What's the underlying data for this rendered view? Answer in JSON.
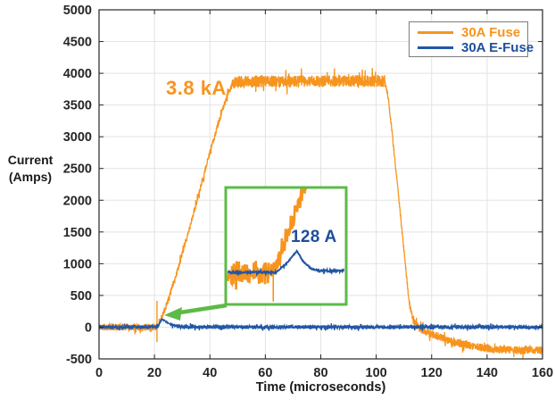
{
  "chart_data": {
    "type": "line",
    "title": "",
    "xlabel": "Time (microseconds)",
    "ylabel_lines": [
      "Current",
      "(Amps)"
    ],
    "xlim": [
      0,
      160
    ],
    "ylim": [
      -500,
      5000
    ],
    "x_ticks": [
      0,
      20,
      40,
      60,
      80,
      100,
      120,
      140,
      160
    ],
    "y_ticks": [
      -500,
      0,
      500,
      1000,
      1500,
      2000,
      2500,
      3000,
      3500,
      4000,
      4500,
      5000
    ],
    "grid": true,
    "colors": {
      "fuse_orange": "#F7941E",
      "efuse_blue_line": "#2257A5",
      "efuse_blue_text": "#1F4E9B",
      "inset_green": "#5CBB46",
      "grid_gray": "#e3e3e3",
      "axis_dark": "#262626",
      "legend_border": "#7d7d7d"
    },
    "legend": {
      "position": "top-right",
      "entries": [
        {
          "label": "30A Fuse",
          "line_color": "#F7941E",
          "text_color": "#F7941E"
        },
        {
          "label": "30A E-Fuse",
          "line_color": "#2257A5",
          "text_color": "#1F4E9B"
        }
      ]
    },
    "annotations": {
      "fuse_peak": {
        "text": "3.8 kA",
        "color": "#F7941E",
        "value_amps": 3800
      },
      "efuse_peak": {
        "text": "128 A",
        "color": "#1F4E9B",
        "value_amps": 128
      }
    },
    "series": [
      {
        "name": "30A Fuse",
        "color": "#F7941E",
        "waypoints": [
          [
            0,
            0
          ],
          [
            20.5,
            0
          ],
          [
            21.2,
            20
          ],
          [
            24,
            300
          ],
          [
            28,
            850
          ],
          [
            32,
            1450
          ],
          [
            36,
            2100
          ],
          [
            40,
            2750
          ],
          [
            44,
            3350
          ],
          [
            46.5,
            3680
          ],
          [
            48.5,
            3850
          ],
          [
            52,
            3870
          ],
          [
            103.3,
            3880
          ],
          [
            104.5,
            3550
          ],
          [
            106,
            2950
          ],
          [
            107.5,
            2300
          ],
          [
            109,
            1650
          ],
          [
            110.5,
            1000
          ],
          [
            111.5,
            550
          ],
          [
            112.3,
            280
          ],
          [
            113,
            150
          ],
          [
            114,
            60
          ],
          [
            116,
            -30
          ],
          [
            120,
            -110
          ],
          [
            126,
            -210
          ],
          [
            132,
            -280
          ],
          [
            140,
            -335
          ],
          [
            148,
            -360
          ],
          [
            155,
            -365
          ],
          [
            160,
            -365
          ]
        ],
        "noise": [
          [
            0,
            20.5,
            55
          ],
          [
            20.5,
            48,
            45
          ],
          [
            48,
            103.5,
            95
          ],
          [
            103.5,
            112,
            45
          ],
          [
            112,
            160,
            62
          ]
        ],
        "spikes": [
          [
            20.9,
            -235,
            415
          ]
        ]
      },
      {
        "name": "30A E-Fuse",
        "color": "#2257A5",
        "waypoints": [
          [
            0,
            0
          ],
          [
            21.2,
            5
          ],
          [
            21.9,
            70
          ],
          [
            22.8,
            128
          ],
          [
            24,
            92
          ],
          [
            25.5,
            48
          ],
          [
            27,
            25
          ],
          [
            29,
            12
          ],
          [
            31,
            4
          ],
          [
            160,
            0
          ]
        ],
        "noise": [
          [
            0,
            21.2,
            28
          ],
          [
            21.2,
            26,
            9
          ],
          [
            26,
            160,
            28
          ]
        ],
        "spikes": []
      }
    ],
    "inset": {
      "description": "zoom of e-fuse current peak near 21 microseconds",
      "border_color": "#5CBB46",
      "xlim": [
        19.8,
        23.4
      ],
      "annotation_text": "128 A",
      "series": [
        {
          "name": "30A Fuse",
          "color": "#F7941E",
          "waypoints": [
            [
              19.87,
              0
            ],
            [
              21.15,
              0
            ],
            [
              21.3,
              30
            ],
            [
              21.5,
              140
            ],
            [
              21.7,
              260
            ],
            [
              21.9,
              380
            ],
            [
              22.1,
              480
            ],
            [
              22.4,
              620
            ]
          ],
          "noise": [
            [
              19.87,
              21.15,
              72
            ],
            [
              21.15,
              22.4,
              48
            ]
          ],
          "spikes": [
            [
              21.22,
              -175,
              60
            ]
          ],
          "quantize": {
            "from": 21.3,
            "step": 42
          }
        },
        {
          "name": "30A E-Fuse",
          "color": "#2257A5",
          "waypoints": [
            [
              19.87,
              0
            ],
            [
              21.3,
              0
            ],
            [
              21.58,
              45
            ],
            [
              21.93,
              128
            ],
            [
              22.1,
              68
            ],
            [
              22.35,
              22
            ],
            [
              22.55,
              9
            ],
            [
              23.33,
              8
            ]
          ],
          "noise": [
            [
              19.87,
              21.3,
              6
            ],
            [
              21.3,
              22.5,
              3
            ],
            [
              22.5,
              23.33,
              6
            ]
          ],
          "spikes": []
        }
      ]
    }
  }
}
